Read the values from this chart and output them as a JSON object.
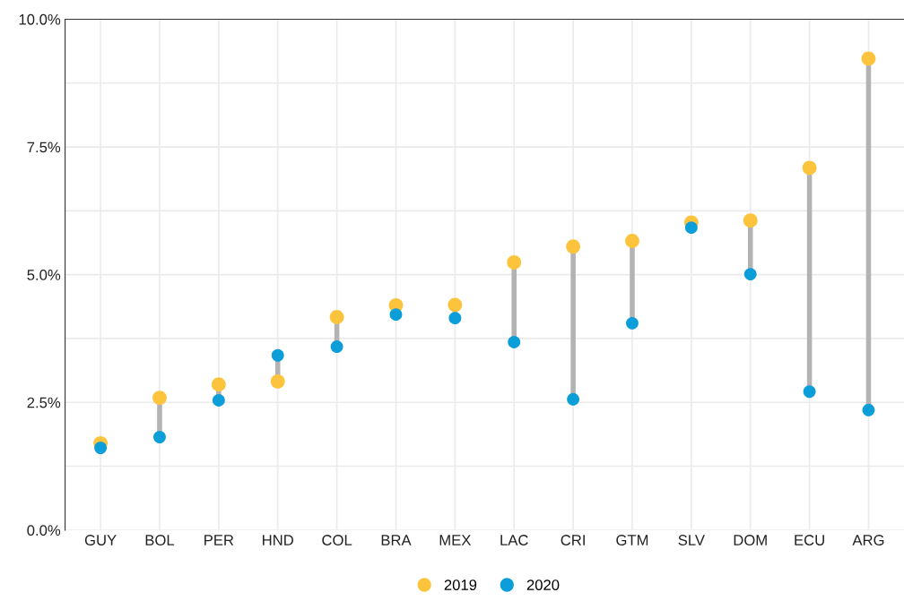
{
  "chart_data": {
    "type": "scatter",
    "categories": [
      "GUY",
      "BOL",
      "PER",
      "HND",
      "COL",
      "BRA",
      "MEX",
      "LAC",
      "CRI",
      "GTM",
      "SLV",
      "DOM",
      "ECU",
      "ARG"
    ],
    "series": [
      {
        "name": "2019",
        "color": "#fcc43c",
        "values": [
          1.7,
          2.59,
          2.85,
          2.91,
          4.17,
          4.4,
          4.41,
          5.24,
          5.55,
          5.66,
          6.02,
          6.06,
          7.09,
          9.23
        ]
      },
      {
        "name": "2020",
        "color": "#0c9ed8",
        "values": [
          1.61,
          1.82,
          2.54,
          3.42,
          3.59,
          4.22,
          4.15,
          3.68,
          2.56,
          4.05,
          5.92,
          5.01,
          2.71,
          2.35
        ]
      }
    ],
    "ylim": [
      0,
      10
    ],
    "yticks": [
      {
        "value": 0,
        "label": "0.0%"
      },
      {
        "value": 1.25,
        "label": null
      },
      {
        "value": 2.5,
        "label": "2.5%"
      },
      {
        "value": 3.75,
        "label": null
      },
      {
        "value": 5,
        "label": "5.0%"
      },
      {
        "value": 6.25,
        "label": null
      },
      {
        "value": 7.5,
        "label": "7.5%"
      },
      {
        "value": 8.75,
        "label": null
      },
      {
        "value": 10,
        "label": "10.0%"
      }
    ],
    "grid": true,
    "legend": "bottom",
    "marker": "circle"
  }
}
